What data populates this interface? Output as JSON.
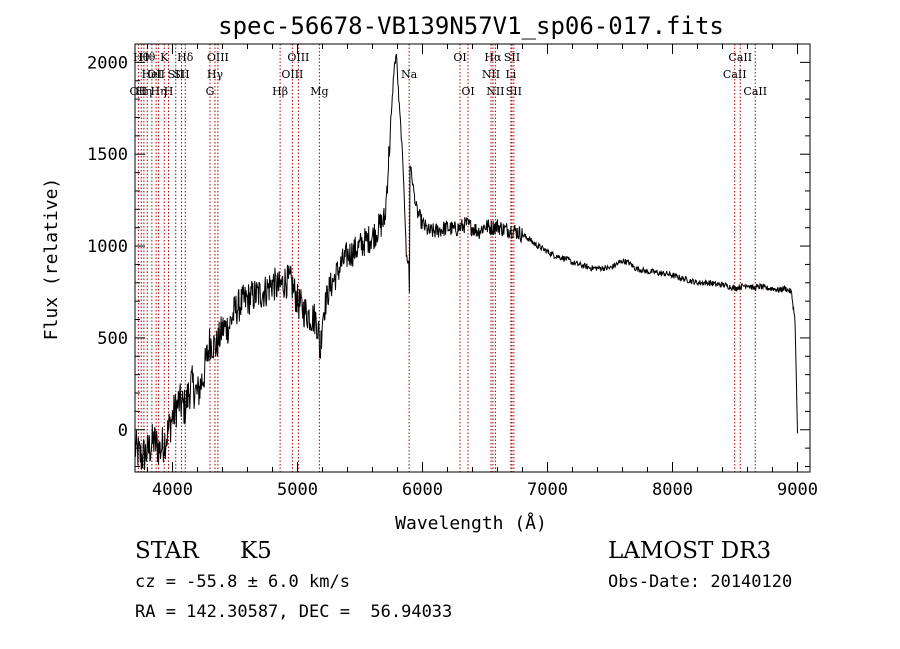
{
  "chart_data": {
    "type": "line",
    "title": "spec-56678-VB139N57V1_sp06-017.fits",
    "xlabel": "Wavelength (Å)",
    "ylabel": "Flux (relative)",
    "xlim": [
      3700,
      9100
    ],
    "ylim": [
      -230,
      2100
    ],
    "x_ticks": [
      4000,
      5000,
      6000,
      7000,
      8000,
      9000
    ],
    "x_tick_labels": [
      "4000",
      "5000",
      "6000",
      "7000",
      "8000",
      "9000"
    ],
    "y_ticks": [
      0,
      500,
      1000,
      1500,
      2000
    ],
    "y_tick_labels": [
      "0",
      "500",
      "1000",
      "1500",
      "2000"
    ],
    "grid": false,
    "series": [
      {
        "x": [
          3700,
          3750,
          3800,
          3850,
          3900,
          3950,
          4000,
          4050,
          4100,
          4150,
          4200,
          4250,
          4300,
          4350,
          4400,
          4450,
          4500,
          4550,
          4600,
          4650,
          4700,
          4750,
          4800,
          4850,
          4900,
          4950,
          5000,
          5050,
          5100,
          5150,
          5170,
          5180,
          5200,
          5250,
          5300,
          5350,
          5400,
          5450,
          5500,
          5550,
          5600,
          5650,
          5700,
          5750,
          5770,
          5790,
          5810,
          5830,
          5850,
          5870,
          5890,
          5895,
          5900,
          5920,
          5950,
          6000,
          6050,
          6100,
          6150,
          6200,
          6250,
          6300,
          6350,
          6400,
          6450,
          6500,
          6550,
          6600,
          6650,
          6700,
          6750,
          6800,
          6850,
          6900,
          6950,
          7000,
          7050,
          7100,
          7150,
          7200,
          7250,
          7300,
          7350,
          7400,
          7450,
          7500,
          7550,
          7600,
          7650,
          7700,
          7750,
          7800,
          7850,
          7900,
          7950,
          8000,
          8050,
          8100,
          8150,
          8200,
          8250,
          8300,
          8350,
          8400,
          8450,
          8500,
          8550,
          8600,
          8650,
          8700,
          8750,
          8800,
          8850,
          8900,
          8950,
          8980,
          9000
        ],
        "y": [
          -100,
          -150,
          -120,
          -60,
          -110,
          -40,
          70,
          150,
          120,
          250,
          190,
          300,
          480,
          450,
          550,
          560,
          650,
          690,
          710,
          730,
          740,
          760,
          800,
          770,
          810,
          800,
          700,
          650,
          620,
          600,
          530,
          400,
          620,
          760,
          830,
          900,
          950,
          970,
          1000,
          1030,
          1050,
          1100,
          1150,
          1700,
          1950,
          2050,
          1800,
          1600,
          1350,
          950,
          900,
          750,
          1450,
          1350,
          1200,
          1120,
          1080,
          1080,
          1090,
          1100,
          1090,
          1100,
          1120,
          1100,
          1080,
          1110,
          1100,
          1110,
          1090,
          1090,
          1080,
          1060,
          1040,
          1010,
          990,
          970,
          950,
          940,
          930,
          910,
          900,
          890,
          880,
          880,
          880,
          880,
          900,
          920,
          910,
          880,
          870,
          860,
          860,
          850,
          850,
          840,
          830,
          820,
          810,
          800,
          800,
          800,
          790,
          790,
          780,
          770,
          780,
          790,
          770,
          780,
          770,
          770,
          760,
          770,
          750,
          600,
          -20
        ]
      }
    ],
    "line_labels": [
      {
        "x": 3727,
        "row": 2,
        "text": "OII"
      },
      {
        "x": 3750,
        "row": 0,
        "text": "Hθ"
      },
      {
        "x": 3771,
        "row": 2,
        "text": "Hη"
      },
      {
        "x": 3798,
        "row": 0,
        "text": "Hθ"
      },
      {
        "x": 3835,
        "row": 1,
        "text": "HeI"
      },
      {
        "x": 3869,
        "row": 1,
        "text": "OII"
      },
      {
        "x": 3889,
        "row": 2,
        "text": "Hη"
      },
      {
        "x": 3934,
        "row": 0,
        "text": "K"
      },
      {
        "x": 3968,
        "row": 2,
        "text": "H"
      },
      {
        "x": 4026,
        "row": 1,
        "text": "SII"
      },
      {
        "x": 4072,
        "row": 1,
        "text": "SII"
      },
      {
        "x": 4102,
        "row": 0,
        "text": "Hδ"
      },
      {
        "x": 4300,
        "row": 2,
        "text": "G"
      },
      {
        "x": 4340,
        "row": 1,
        "text": "Hγ"
      },
      {
        "x": 4363,
        "row": 0,
        "text": "OIII"
      },
      {
        "x": 4861,
        "row": 2,
        "text": "Hβ"
      },
      {
        "x": 4959,
        "row": 1,
        "text": "OIII"
      },
      {
        "x": 5007,
        "row": 0,
        "text": "OIII"
      },
      {
        "x": 5175,
        "row": 2,
        "text": "Mg"
      },
      {
        "x": 5893,
        "row": 1,
        "text": "Na"
      },
      {
        "x": 6300,
        "row": 0,
        "text": "OI"
      },
      {
        "x": 6364,
        "row": 2,
        "text": "OI"
      },
      {
        "x": 6548,
        "row": 1,
        "text": "NII"
      },
      {
        "x": 6563,
        "row": 0,
        "text": "Hα"
      },
      {
        "x": 6583,
        "row": 2,
        "text": "NII"
      },
      {
        "x": 6707,
        "row": 1,
        "text": "Li"
      },
      {
        "x": 6716,
        "row": 0,
        "text": "SII"
      },
      {
        "x": 6731,
        "row": 2,
        "text": "SII"
      },
      {
        "x": 8498,
        "row": 1,
        "text": "CaII"
      },
      {
        "x": 8542,
        "row": 0,
        "text": "CaII"
      },
      {
        "x": 8662,
        "row": 2,
        "text": "CaII"
      }
    ],
    "colors": {
      "spectrum": "#000000",
      "line_markers": "#b00000",
      "axes": "#000000"
    }
  },
  "info": {
    "object_type": "STAR",
    "subclass": "K5",
    "survey": "LAMOST DR3",
    "velocity": "cz = -55.8 ± 6.0 km/s",
    "obs_date": "Obs-Date: 20140120",
    "coords": "RA = 142.30587, DEC =  56.94033"
  }
}
